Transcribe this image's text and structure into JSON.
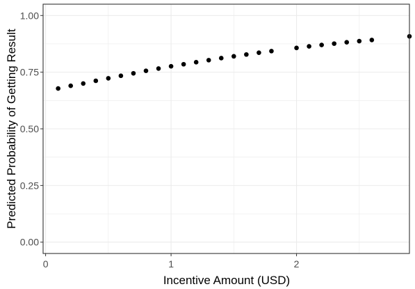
{
  "chart_data": {
    "type": "scatter",
    "title": "",
    "xlabel": "Incentive Amount (USD)",
    "ylabel": "Predicted Probability of Getting Result",
    "xlim": [
      -0.02,
      2.9
    ],
    "ylim": [
      -0.05,
      1.05
    ],
    "xticks": [
      0,
      1,
      2
    ],
    "xtick_labels": [
      "0",
      "1",
      "2"
    ],
    "xminor": [
      0.5,
      1.5,
      2.5
    ],
    "yticks": [
      0.0,
      0.25,
      0.5,
      0.75,
      1.0
    ],
    "ytick_labels": [
      "0.00",
      "0.25",
      "0.50",
      "0.75",
      "1.00"
    ],
    "yminor": [
      0.125,
      0.375,
      0.625,
      0.875
    ],
    "grid": true,
    "points": [
      {
        "x": 0.1,
        "y": 0.678
      },
      {
        "x": 0.2,
        "y": 0.69
      },
      {
        "x": 0.3,
        "y": 0.7
      },
      {
        "x": 0.4,
        "y": 0.712
      },
      {
        "x": 0.5,
        "y": 0.723
      },
      {
        "x": 0.6,
        "y": 0.734
      },
      {
        "x": 0.7,
        "y": 0.745
      },
      {
        "x": 0.8,
        "y": 0.756
      },
      {
        "x": 0.9,
        "y": 0.766
      },
      {
        "x": 1.0,
        "y": 0.776
      },
      {
        "x": 1.1,
        "y": 0.785
      },
      {
        "x": 1.2,
        "y": 0.794
      },
      {
        "x": 1.3,
        "y": 0.803
      },
      {
        "x": 1.4,
        "y": 0.812
      },
      {
        "x": 1.5,
        "y": 0.82
      },
      {
        "x": 1.6,
        "y": 0.828
      },
      {
        "x": 1.7,
        "y": 0.836
      },
      {
        "x": 1.8,
        "y": 0.843
      },
      {
        "x": 2.0,
        "y": 0.857
      },
      {
        "x": 2.1,
        "y": 0.864
      },
      {
        "x": 2.2,
        "y": 0.87
      },
      {
        "x": 2.3,
        "y": 0.876
      },
      {
        "x": 2.4,
        "y": 0.882
      },
      {
        "x": 2.5,
        "y": 0.887
      },
      {
        "x": 2.6,
        "y": 0.892
      },
      {
        "x": 2.9,
        "y": 0.908
      }
    ],
    "point_color": "#000000",
    "grid_color": "#ebebeb",
    "panel_border_color": "#333333"
  }
}
